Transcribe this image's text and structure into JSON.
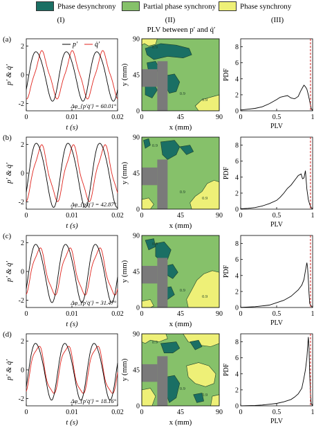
{
  "legend": {
    "items": [
      {
        "label": "Phase desynchrony",
        "color": "#1a6f64"
      },
      {
        "label": "Partial phase synchrony",
        "color": "#86c16a"
      },
      {
        "label": "Phase synchrony",
        "color": "#eef077"
      }
    ]
  },
  "columns": {
    "c1": "(I)",
    "c2": "(II)",
    "c3": "(III)",
    "plv_title": "PLV between p′ and q̇′"
  },
  "row_labels": [
    "(a)",
    "(b)",
    "(c)",
    "(d)"
  ],
  "series_labels": {
    "p": "p′",
    "q": "q̇′"
  },
  "colors": {
    "p": "#000000",
    "q": "#e0221b",
    "desync": "#1a6f64",
    "partial": "#86c16a",
    "sync": "#eef077",
    "bluff": "#7a7a7a",
    "threshold": "#d62020"
  },
  "contour_label": "0.9",
  "chart_data": [
    {
      "type": "line",
      "panel": "time-series",
      "rows": [
        "(a)",
        "(b)",
        "(c)",
        "(d)"
      ],
      "xlabel": "t (s)",
      "ylabel": "p′ & q̇′",
      "xlim": [
        0,
        0.02
      ],
      "ylim": [
        -2.5,
        2.5
      ],
      "xticks": [
        "0",
        "0.01",
        "0.02"
      ],
      "yticks": [
        "-2",
        "0",
        "2"
      ],
      "frequency_hz": [
        150,
        144,
        153,
        156
      ],
      "amplitude_p": [
        1.7,
        2.2,
        2.0,
        1.95
      ],
      "amplitude_q": [
        1.5,
        1.8,
        1.55,
        1.65
      ],
      "mean_phase_difference_deg": [
        60.01,
        42.87,
        31.47,
        18.16
      ],
      "annotations": [
        "Δφ_{p′q̇′} = 60.01°",
        "Δφ_{p′q̇′} = 42.87°",
        "Δφ_{p′q̇′} = 31.47°",
        "Δφ_{p′q̇′} = 18.16°"
      ]
    },
    {
      "type": "heatmap",
      "panel": "PLV map",
      "title": "PLV between p′ and q̇′",
      "xlabel": "x (mm)",
      "ylabel": "y (mm)",
      "xlim": [
        0,
        90
      ],
      "ylim": [
        0,
        90
      ],
      "xticks": [
        "0",
        "45",
        "90"
      ],
      "yticks": [
        "0",
        "45",
        "90"
      ],
      "categories": [
        "Phase desynchrony",
        "Partial phase synchrony",
        "Phase synchrony"
      ],
      "contour_level": 0.9
    },
    {
      "type": "line",
      "panel": "PLV distribution",
      "xlabel": "PLV",
      "ylabel": "PDF",
      "xlim": [
        0,
        1
      ],
      "ylim": [
        0,
        9
      ],
      "xticks": [
        "0",
        "0.5",
        "1"
      ],
      "yticks": [
        "0",
        "2",
        "4",
        "6",
        "8"
      ],
      "threshold": 0.97,
      "series": [
        {
          "row": "(a)",
          "x": [
            0,
            0.1,
            0.2,
            0.3,
            0.4,
            0.5,
            0.55,
            0.6,
            0.65,
            0.7,
            0.75,
            0.8,
            0.83,
            0.86,
            0.88,
            0.9,
            0.92,
            0.94,
            0.96,
            0.98,
            1.0
          ],
          "y": [
            0.1,
            0.2,
            0.3,
            0.5,
            0.9,
            1.4,
            1.7,
            1.8,
            1.9,
            1.6,
            1.5,
            1.8,
            2.4,
            2.9,
            3.2,
            3.0,
            2.7,
            2.0,
            1.2,
            0.3,
            0
          ]
        },
        {
          "row": "(b)",
          "x": [
            0,
            0.1,
            0.2,
            0.3,
            0.4,
            0.5,
            0.55,
            0.6,
            0.65,
            0.7,
            0.75,
            0.8,
            0.84,
            0.86,
            0.88,
            0.9,
            0.92,
            0.94,
            0.96,
            0.98,
            1.0
          ],
          "y": [
            0.05,
            0.1,
            0.2,
            0.4,
            0.7,
            1.1,
            1.5,
            2.0,
            2.6,
            3.0,
            3.6,
            4.2,
            4.4,
            3.8,
            3.9,
            4.8,
            2.5,
            1.2,
            0.6,
            0.2,
            0
          ]
        },
        {
          "row": "(c)",
          "x": [
            0,
            0.2,
            0.3,
            0.4,
            0.5,
            0.6,
            0.7,
            0.75,
            0.8,
            0.85,
            0.88,
            0.9,
            0.92,
            0.93,
            0.94,
            0.95,
            0.96,
            0.98,
            1.0
          ],
          "y": [
            0.02,
            0.1,
            0.2,
            0.3,
            0.6,
            0.9,
            1.4,
            1.8,
            2.2,
            2.8,
            3.5,
            4.6,
            5.6,
            5.0,
            3.5,
            1.8,
            0.5,
            0.2,
            0
          ]
        },
        {
          "row": "(d)",
          "x": [
            0,
            0.2,
            0.3,
            0.4,
            0.5,
            0.6,
            0.7,
            0.75,
            0.8,
            0.85,
            0.88,
            0.9,
            0.92,
            0.94,
            0.95,
            0.96,
            0.97,
            0.98,
            1.0
          ],
          "y": [
            0.01,
            0.05,
            0.1,
            0.2,
            0.3,
            0.5,
            0.8,
            1.1,
            1.5,
            2.2,
            3.5,
            4.5,
            6.0,
            8.6,
            7.2,
            4.0,
            1.5,
            0.3,
            0
          ]
        }
      ]
    }
  ]
}
